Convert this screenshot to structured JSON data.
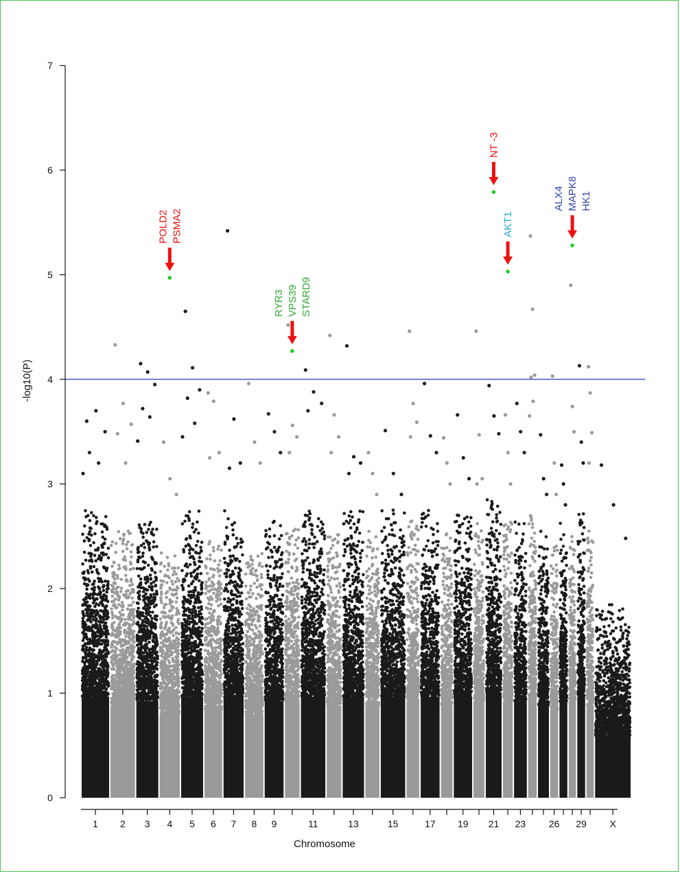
{
  "chart_data": {
    "type": "scatter",
    "title": "",
    "xlabel": "Chromosome",
    "ylabel": "-log10(P)",
    "ylim": [
      0,
      7
    ],
    "yticks": [
      0,
      1,
      2,
      3,
      4,
      5,
      6,
      7
    ],
    "grid": false,
    "legend": "none",
    "colors": {
      "odd": "#1a1a1a",
      "even": "#9a9a9a",
      "threshold": "#2233cc",
      "highlight": "#22cc22",
      "arrow": "#ee1111"
    },
    "threshold": 4.0,
    "chromosomes": [
      {
        "name": "1",
        "label": "1",
        "base": 2.3,
        "peaks": [
          3.6,
          3.7,
          3.5,
          3.3,
          3.2,
          3.1
        ]
      },
      {
        "name": "2",
        "label": "2",
        "base": 2.1,
        "peaks": [
          4.33,
          3.77,
          3.57,
          3.48,
          3.2
        ]
      },
      {
        "name": "3",
        "label": "3",
        "base": 2.2,
        "peaks": [
          4.15,
          4.07,
          3.95,
          3.72,
          3.64,
          3.41
        ]
      },
      {
        "name": "4",
        "label": "4",
        "base": 1.9,
        "peaks": [
          3.4,
          3.05,
          2.9
        ]
      },
      {
        "name": "5",
        "label": "5",
        "base": 2.3,
        "peaks": [
          4.65,
          4.11,
          3.9,
          3.82,
          3.58,
          3.45
        ]
      },
      {
        "name": "6",
        "label": "6",
        "base": 2.0,
        "peaks": [
          3.87,
          3.79,
          3.3,
          3.25
        ]
      },
      {
        "name": "7",
        "label": "7",
        "base": 2.3,
        "peaks": [
          5.42,
          3.62,
          3.2,
          3.15
        ]
      },
      {
        "name": "8",
        "label": "8",
        "base": 1.9,
        "peaks": [
          3.96,
          3.4,
          3.2
        ]
      },
      {
        "name": "9",
        "label": "9",
        "base": 2.2,
        "peaks": [
          3.67,
          3.5,
          3.3
        ]
      },
      {
        "name": "10",
        "label": "",
        "base": 2.2,
        "peaks": [
          4.52,
          3.56,
          3.45,
          3.3
        ]
      },
      {
        "name": "11",
        "label": "11",
        "base": 2.3,
        "peaks": [
          4.09,
          3.88,
          3.77,
          3.7
        ]
      },
      {
        "name": "12",
        "label": "",
        "base": 2.1,
        "peaks": [
          4.42,
          3.66,
          3.45,
          3.3
        ]
      },
      {
        "name": "13",
        "label": "13",
        "base": 2.3,
        "peaks": [
          4.32,
          3.26,
          3.2,
          3.1
        ]
      },
      {
        "name": "14",
        "label": "",
        "base": 2.1,
        "peaks": [
          3.3,
          3.1,
          2.9
        ]
      },
      {
        "name": "15",
        "label": "15",
        "base": 2.3,
        "peaks": [
          3.51,
          3.1,
          2.9
        ]
      },
      {
        "name": "16",
        "label": "",
        "base": 2.2,
        "peaks": [
          4.46,
          3.77,
          3.59,
          3.45
        ]
      },
      {
        "name": "17",
        "label": "17",
        "base": 2.3,
        "peaks": [
          3.96,
          3.46,
          3.3
        ]
      },
      {
        "name": "18",
        "label": "",
        "base": 2.1,
        "peaks": [
          3.44,
          3.2,
          3.0
        ]
      },
      {
        "name": "19",
        "label": "19",
        "base": 2.3,
        "peaks": [
          3.66,
          3.25,
          3.05
        ]
      },
      {
        "name": "20",
        "label": "",
        "base": 2.2,
        "peaks": [
          4.46,
          3.47,
          3.05,
          3.0
        ]
      },
      {
        "name": "21",
        "label": "21",
        "base": 2.4,
        "peaks": [
          3.94,
          3.65,
          3.48
        ]
      },
      {
        "name": "22",
        "label": "",
        "base": 2.2,
        "peaks": [
          3.66,
          3.3,
          3.0
        ]
      },
      {
        "name": "23",
        "label": "23",
        "base": 2.2,
        "peaks": [
          3.77,
          3.5,
          3.3
        ]
      },
      {
        "name": "24",
        "label": "",
        "base": 2.3,
        "peaks": [
          5.37,
          4.67,
          4.04,
          4.02,
          3.79,
          3.65
        ]
      },
      {
        "name": "25",
        "label": "",
        "base": 2.1,
        "peaks": [
          3.47,
          3.05,
          2.9
        ]
      },
      {
        "name": "26",
        "label": "26",
        "base": 2.0,
        "peaks": [
          4.03,
          3.2,
          2.9
        ]
      },
      {
        "name": "27",
        "label": "",
        "base": 2.2,
        "peaks": [
          3.18,
          3.0,
          2.8
        ]
      },
      {
        "name": "28",
        "label": "",
        "base": 2.2,
        "peaks": [
          4.9,
          3.74,
          3.5
        ]
      },
      {
        "name": "29",
        "label": "29",
        "base": 2.3,
        "peaks": [
          4.13,
          3.4,
          3.2
        ]
      },
      {
        "name": "30",
        "label": "",
        "base": 2.1,
        "peaks": [
          4.12,
          3.87,
          3.49,
          3.2
        ]
      },
      {
        "name": "X",
        "label": "X",
        "base": 1.4,
        "peaks": [
          3.18,
          2.8,
          2.48
        ]
      }
    ],
    "highlights": [
      {
        "chrom": "4",
        "y": 4.97,
        "genes": [
          "POLD2",
          "PSMA2"
        ],
        "color": "#ee1111"
      },
      {
        "chrom": "10",
        "y": 4.27,
        "genes": [
          "RYR3",
          "VPS39",
          "STARD9"
        ],
        "color": "#33aa33"
      },
      {
        "chrom": "21",
        "y": 5.79,
        "genes": [
          "NT -3"
        ],
        "color": "#ee1111"
      },
      {
        "chrom": "22",
        "y": 5.03,
        "genes": [
          "AKT1"
        ],
        "color": "#22aacc"
      },
      {
        "chrom": "28",
        "y": 5.28,
        "genes": [
          "ALX4",
          "MAPK8",
          "HK1"
        ],
        "color": "#3344aa"
      }
    ]
  }
}
